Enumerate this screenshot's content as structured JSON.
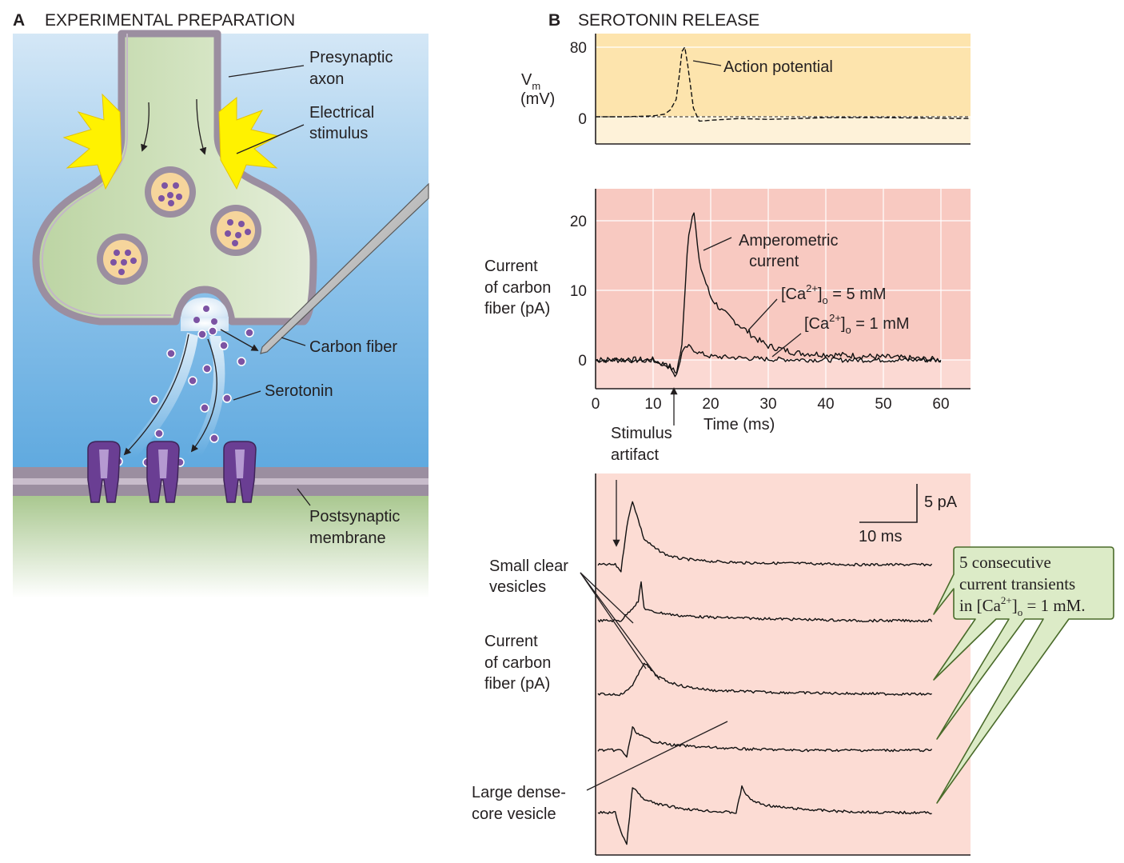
{
  "panel_a": {
    "letter": "A",
    "title": "EXPERIMENTAL PREPARATION",
    "labels": {
      "presynaptic_axon": [
        "Presynaptic",
        "axon"
      ],
      "electrical_stimulus": [
        "Electrical",
        "stimulus"
      ],
      "carbon_fiber": "Carbon fiber",
      "serotonin": "Serotonin",
      "postsynaptic_membrane": [
        "Postsynaptic",
        "membrane"
      ]
    },
    "colors": {
      "extracellular": "#5fa9df",
      "terminal": "#cfdfb9",
      "membrane": "#9b8ea0",
      "stimulus": "#fff200",
      "vesicle": "#f6d59c",
      "transmitter": "#7c53a3",
      "receptor": "#6a3e93",
      "postsynaptic": "#a5c58a"
    }
  },
  "panel_b": {
    "letter": "B",
    "title": "SEROTONIN RELEASE",
    "membrane_potential": {
      "ylabel_main": "V",
      "ylabel_sub": "m",
      "ylabel_unit": "(mV)",
      "yticks": [
        "80",
        "0"
      ],
      "annotation": "Action potential",
      "colors": {
        "plot_bg": "#fde4ad",
        "baseline_band": "#fef2d9"
      }
    },
    "amperometry": {
      "ylabel": [
        "Current",
        "of carbon",
        "fiber (pA)"
      ],
      "yticks": [
        "20",
        "10",
        "0"
      ],
      "xticks": [
        "0",
        "10",
        "20",
        "30",
        "40",
        "50",
        "60"
      ],
      "xlabel": "Time (ms)",
      "annotation": [
        "Amperometric",
        "current"
      ],
      "ca5": {
        "pre": "[Ca",
        "sup": "2+",
        "close": "]",
        "sub": "o",
        "post": " = 5 mM"
      },
      "ca1": {
        "pre": "[Ca",
        "sup": "2+",
        "close": "]",
        "sub": "o",
        "post": " = 1 mM"
      },
      "stimulus_artifact": [
        "Stimulus",
        "artifact"
      ],
      "colors": {
        "plot_bg": "#f8c9c1",
        "baseline_band": "#fbd9d3"
      }
    },
    "transients": {
      "scale_y": "5 pA",
      "scale_x": "10 ms",
      "small_vesicles": [
        "Small clear",
        "vesicles"
      ],
      "ylabel": [
        "Current",
        "of carbon",
        "fiber (pA)"
      ],
      "dense_core": [
        "Large dense-",
        "core vesicle"
      ],
      "callout": {
        "line1": "5 consecutive",
        "line2": "current transients",
        "line3_pre": "in [Ca",
        "line3_sup": "2+",
        "line3_close": "]",
        "line3_sub": "o",
        "line3_post": " = 1 mM."
      },
      "colors": {
        "plot_bg": "#fcdcd4",
        "callout_bg": "#dcebc7",
        "callout_border": "#4a6b2a"
      }
    }
  },
  "chart_data": [
    {
      "type": "line",
      "title": "",
      "ylabel": "Vm (mV)",
      "ylim": [
        -35,
        95
      ],
      "yticks": [
        80,
        0
      ],
      "series": [
        {
          "name": "",
          "x": [
            0,
            5,
            10,
            12,
            13,
            14,
            14.5,
            15,
            15.5,
            16,
            17,
            18,
            20,
            25,
            30,
            40,
            50,
            65
          ],
          "y": [
            0,
            0,
            1,
            3,
            8,
            20,
            45,
            75,
            80,
            60,
            10,
            -5,
            -4,
            -2,
            -3,
            -1,
            -1,
            -2
          ]
        }
      ],
      "grid": true
    },
    {
      "type": "line",
      "title": "",
      "xlabel": "Time (ms)",
      "ylabel": "Current of carbon fiber (pA)",
      "xlim": [
        0,
        65
      ],
      "ylim": [
        -4,
        25
      ],
      "xticks": [
        0,
        10,
        20,
        30,
        40,
        50,
        60
      ],
      "yticks": [
        0,
        10,
        20
      ],
      "grid": true,
      "series": [
        {
          "name": "[Ca2+]o = 5 mM",
          "x": [
            0,
            10,
            13,
            14,
            15,
            16,
            17,
            18,
            20,
            22,
            25,
            28,
            30,
            35,
            40,
            50,
            60
          ],
          "y": [
            0,
            0,
            -1,
            -2,
            2,
            17,
            22,
            14,
            9,
            7,
            5,
            3,
            2,
            1,
            0.8,
            0.4,
            0
          ]
        },
        {
          "name": "[Ca2+]o = 1 mM",
          "x": [
            0,
            10,
            13,
            14,
            15,
            16,
            17,
            18,
            20,
            25,
            30,
            40,
            50,
            60
          ],
          "y": [
            0,
            0,
            -1,
            -2.5,
            1,
            2,
            1.5,
            1,
            0.5,
            0.3,
            0.1,
            0,
            0,
            0
          ]
        }
      ]
    },
    {
      "type": "line",
      "title": "",
      "ylabel": "Current of carbon fiber (pA)",
      "scale_bar": {
        "current_pA": 5,
        "time_ms": 10
      },
      "series": [
        {
          "name": "",
          "x": [
            0,
            3,
            4,
            5,
            6,
            7,
            8,
            10,
            12,
            14,
            18,
            25,
            35,
            45,
            58
          ],
          "y": [
            0,
            0,
            -1,
            6,
            10,
            7,
            4,
            2.5,
            1.5,
            1,
            0.6,
            0.3,
            0.2,
            0,
            0
          ]
        },
        {
          "name": "",
          "x": [
            0,
            4,
            6,
            7,
            7.5,
            8,
            9,
            11,
            14,
            20,
            30,
            45,
            58
          ],
          "y": [
            0,
            0,
            2,
            3,
            6,
            2,
            1.5,
            1.2,
            0.8,
            0.5,
            0.3,
            0,
            0
          ]
        },
        {
          "name": "",
          "x": [
            0,
            4,
            5,
            6,
            7,
            8,
            9,
            10,
            12,
            15,
            20,
            30,
            45,
            58
          ],
          "y": [
            0,
            0,
            0.5,
            1.5,
            3,
            5,
            4,
            3,
            2,
            1.2,
            0.6,
            0.3,
            0.1,
            0
          ]
        },
        {
          "name": "",
          "x": [
            0,
            4,
            5,
            6,
            7,
            8,
            10,
            13,
            18,
            25,
            35,
            45,
            58
          ],
          "y": [
            0,
            0,
            -1,
            3.5,
            2.5,
            2,
            1.3,
            0.8,
            0.5,
            0.2,
            0,
            0,
            0
          ]
        },
        {
          "name": "",
          "x": [
            0,
            3,
            4,
            5,
            6,
            8,
            11,
            15,
            20,
            24,
            25,
            26,
            27,
            29,
            32,
            36,
            42,
            50,
            58
          ],
          "y": [
            0,
            0,
            -3,
            -5,
            4,
            2,
            1.2,
            0.6,
            0.2,
            0,
            4,
            2.5,
            1.8,
            1.2,
            0.8,
            0.5,
            0.2,
            0,
            0
          ]
        }
      ]
    }
  ]
}
